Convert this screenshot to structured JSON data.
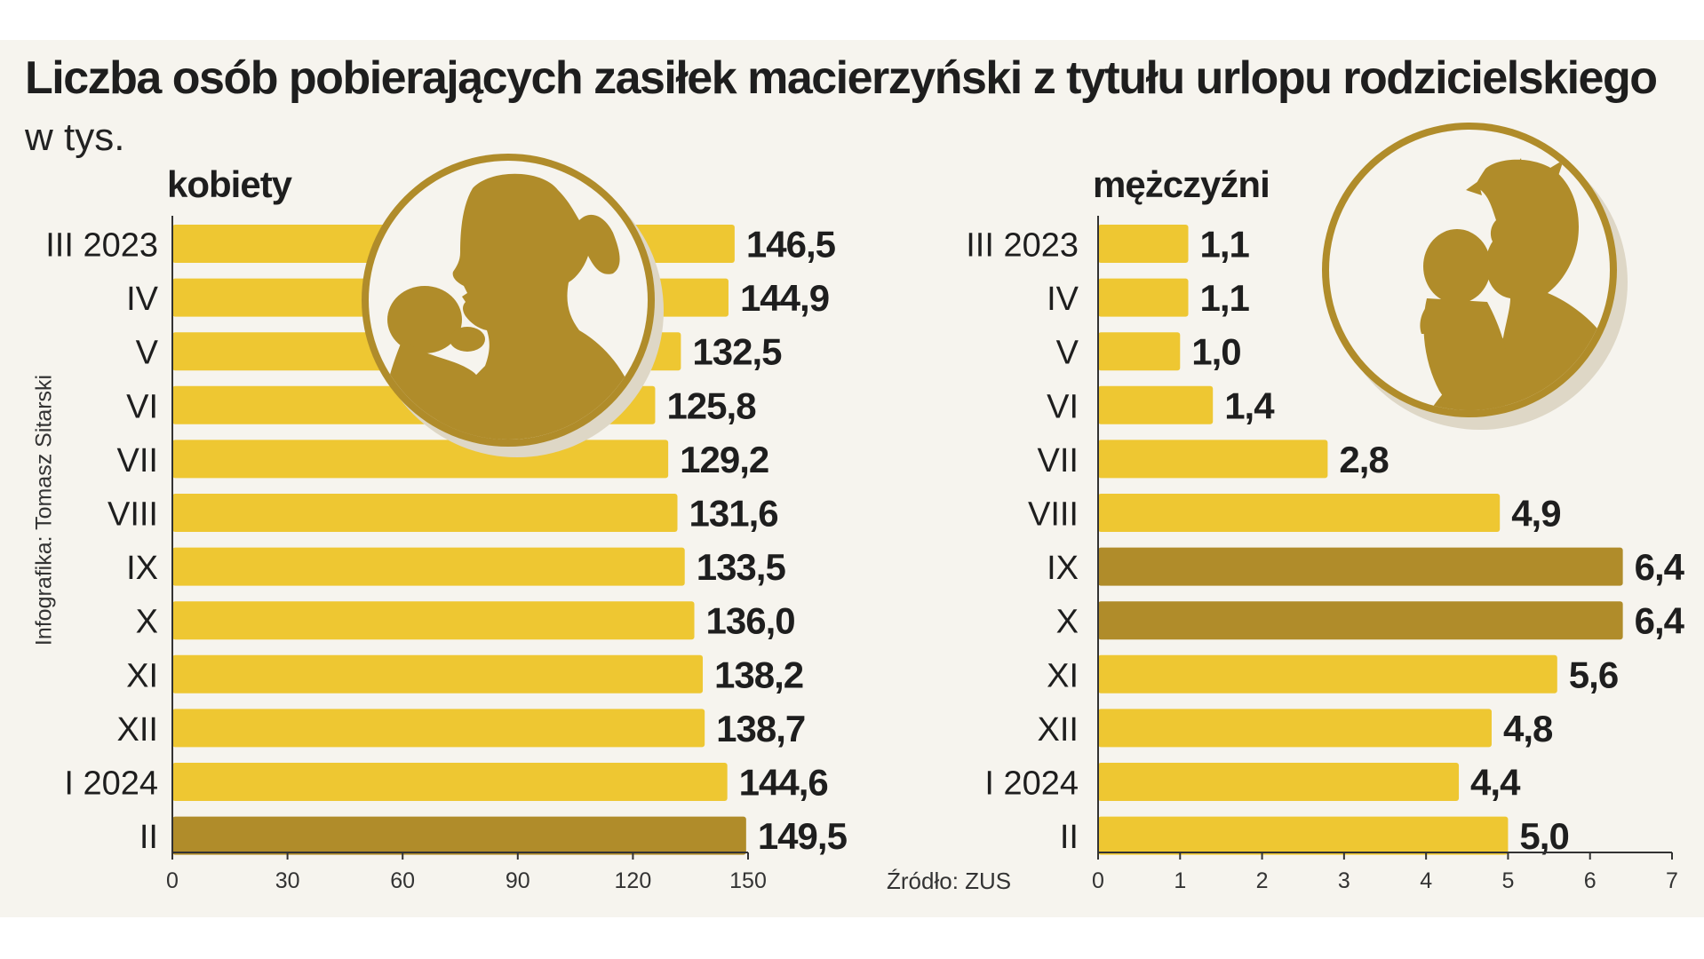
{
  "title": "Liczba osób pobierających zasiłek macierzyński z tytułu urlopu rodzicielskiego",
  "subtitle": "w tys.",
  "credit": "Infografika: Tomasz Sitarski",
  "source": "Źródło: ZUS",
  "colors": {
    "bar": "#eec732",
    "highlight": "#b08c2a",
    "circle": "#b08c2a",
    "background": "#f6f4ee"
  },
  "icons": [
    "mother-with-baby-icon",
    "father-with-baby-icon"
  ],
  "chart_data": [
    {
      "type": "bar",
      "orientation": "horizontal",
      "title": "kobiety",
      "categories": [
        "III 2023",
        "IV",
        "V",
        "VI",
        "VII",
        "VIII",
        "IX",
        "X",
        "XI",
        "XII",
        "I 2024",
        "II"
      ],
      "value_labels": [
        "146,5",
        "144,9",
        "132,5",
        "125,8",
        "129,2",
        "131,6",
        "133,5",
        "136,0",
        "138,2",
        "138,7",
        "144,6",
        "149,5"
      ],
      "values": [
        146.5,
        144.9,
        132.5,
        125.8,
        129.2,
        131.6,
        133.5,
        136.0,
        138.2,
        138.7,
        144.6,
        149.5
      ],
      "highlighted": [
        11
      ],
      "xlim": [
        0,
        150
      ],
      "ticks": [
        0,
        30,
        60,
        90,
        120,
        150
      ]
    },
    {
      "type": "bar",
      "orientation": "horizontal",
      "title": "mężczyźni",
      "categories": [
        "III 2023",
        "IV",
        "V",
        "VI",
        "VII",
        "VIII",
        "IX",
        "X",
        "XI",
        "XII",
        "I 2024",
        "II"
      ],
      "value_labels": [
        "1,1",
        "1,1",
        "1,0",
        "1,4",
        "2,8",
        "4,9",
        "6,4",
        "6,4",
        "5,6",
        "4,8",
        "4,4",
        "5,0"
      ],
      "values": [
        1.1,
        1.1,
        1.0,
        1.4,
        2.8,
        4.9,
        6.4,
        6.4,
        5.6,
        4.8,
        4.4,
        5.0
      ],
      "highlighted": [
        6,
        7
      ],
      "xlim": [
        0,
        7
      ],
      "ticks": [
        0,
        1,
        2,
        3,
        4,
        5,
        6,
        7
      ]
    }
  ]
}
